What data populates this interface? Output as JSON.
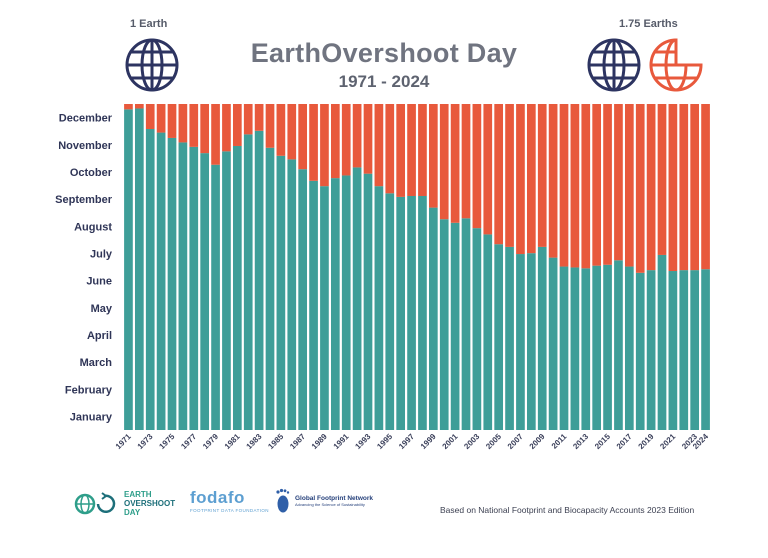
{
  "header": {
    "title": "EarthOvershoot Day",
    "subtitle": "1971 - 2024",
    "left_label": "1 Earth",
    "right_label": "1.75 Earths"
  },
  "footer": {
    "eod_logo": [
      "EARTH",
      "OVERSHOOT",
      "DAY"
    ],
    "fodafo_logo": "fodafo",
    "fodafo_sub": "FOOTPRINT DATA FOUNDATION",
    "gfn_name": "Global Footprint Network",
    "gfn_sub": "Advancing the Science of Sustainability",
    "source": "Based on National Footprint and Biocapacity Accounts 2023 Edition"
  },
  "colors": {
    "teal": "#3e9e98",
    "orange": "#e8593c",
    "navy": "#2d3461",
    "gray_title": "#707480"
  },
  "icons": [
    "globe-icon",
    "half-globe-icon",
    "footprint-icon"
  ],
  "chart_data": {
    "type": "bar",
    "stacked": true,
    "y_axis": "day of year",
    "ylim": [
      0,
      365
    ],
    "y_tick_labels": [
      "January",
      "February",
      "March",
      "April",
      "May",
      "June",
      "July",
      "August",
      "September",
      "October",
      "November",
      "December"
    ],
    "x_tick_labels": [
      "1971",
      "1973",
      "1975",
      "1977",
      "1979",
      "1981",
      "1983",
      "1985",
      "1987",
      "1989",
      "1991",
      "1993",
      "1995",
      "1997",
      "1999",
      "2001",
      "2003",
      "2005",
      "2007",
      "2009",
      "2011",
      "2013",
      "2015",
      "2017",
      "2019",
      "2021",
      "2023",
      "2024"
    ],
    "categories": [
      1971,
      1972,
      1973,
      1974,
      1975,
      1976,
      1977,
      1978,
      1979,
      1980,
      1981,
      1982,
      1983,
      1984,
      1985,
      1986,
      1987,
      1988,
      1989,
      1990,
      1991,
      1992,
      1993,
      1994,
      1995,
      1996,
      1997,
      1998,
      1999,
      2000,
      2001,
      2002,
      2003,
      2004,
      2005,
      2006,
      2007,
      2008,
      2009,
      2010,
      2011,
      2012,
      2013,
      2014,
      2015,
      2016,
      2017,
      2018,
      2019,
      2020,
      2021,
      2022,
      2023,
      2024
    ],
    "series": [
      {
        "values": [
          359,
          360,
          337,
          333,
          327,
          322,
          317,
          310,
          297,
          312,
          318,
          331,
          335,
          316,
          307,
          303,
          292,
          279,
          273,
          282,
          285,
          294,
          287,
          273,
          265,
          261,
          262,
          262,
          249,
          236,
          232,
          237,
          226,
          219,
          208,
          205,
          197,
          198,
          205,
          193,
          183,
          182,
          181,
          184,
          185,
          190,
          183,
          176,
          179,
          196,
          178,
          179,
          179,
          180
        ]
      },
      {
        "values": [
          6,
          5,
          28,
          32,
          38,
          43,
          48,
          55,
          68,
          53,
          47,
          34,
          30,
          49,
          58,
          62,
          73,
          86,
          92,
          83,
          80,
          71,
          78,
          92,
          100,
          104,
          103,
          103,
          116,
          129,
          133,
          128,
          139,
          146,
          157,
          160,
          168,
          167,
          160,
          172,
          182,
          183,
          184,
          181,
          180,
          175,
          182,
          189,
          186,
          169,
          187,
          186,
          186,
          185
        ]
      }
    ]
  }
}
